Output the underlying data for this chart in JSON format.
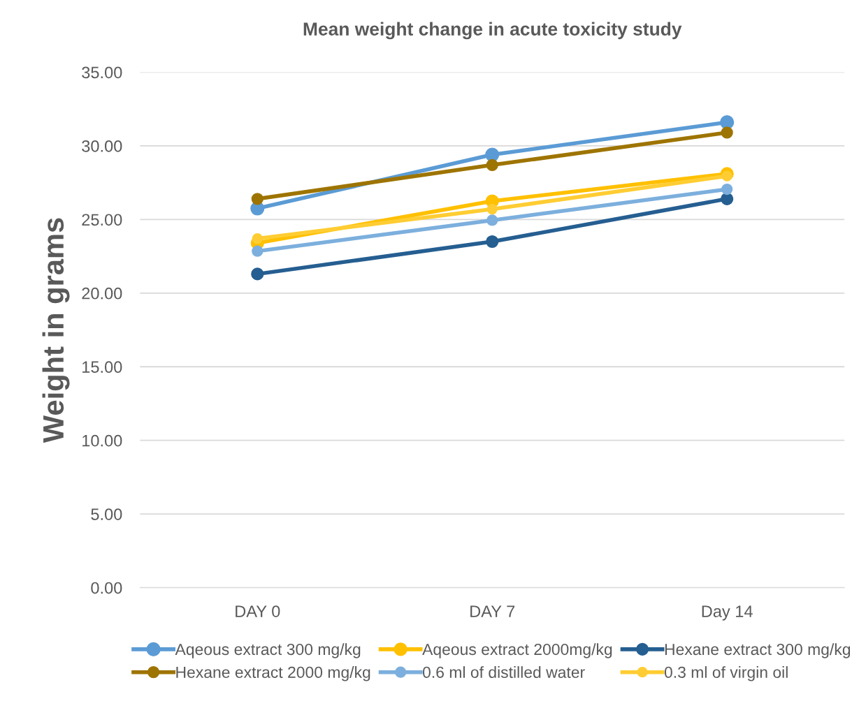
{
  "chart_data": {
    "type": "line",
    "title": "Mean weight change in acute toxicity study",
    "ylabel": "Weight in grams",
    "categories": [
      "DAY 0",
      "DAY 7",
      "Day 14"
    ],
    "series": [
      {
        "name": "Aqeous extract 300 mg/kg",
        "color": "#5b9bd5",
        "values": [
          25.75,
          29.4,
          31.6
        ]
      },
      {
        "name": "Aqeous extract 2000mg/kg",
        "color": "#ffc000",
        "values": [
          23.4,
          26.25,
          28.1
        ]
      },
      {
        "name": "Hexane extract 300 mg/kg",
        "color": "#255e91",
        "values": [
          21.3,
          23.5,
          26.4
        ]
      },
      {
        "name": "Hexane extract 2000 mg/kg",
        "color": "#9e7400",
        "values": [
          26.4,
          28.7,
          30.9
        ]
      },
      {
        "name": "0.6 ml of distilled water",
        "color": "#7cafdd",
        "values": [
          22.85,
          24.95,
          27.05
        ]
      },
      {
        "name": "0.3 ml of virgin oil",
        "color": "#ffcd33",
        "values": [
          23.7,
          25.7,
          27.95
        ]
      }
    ],
    "ylim": [
      0,
      35
    ],
    "yticks": [
      {
        "value": 0,
        "label": "0.00"
      },
      {
        "value": 5,
        "label": "5.00"
      },
      {
        "value": 10,
        "label": "10.00"
      },
      {
        "value": 15,
        "label": "15.00"
      },
      {
        "value": 20,
        "label": "20.00"
      },
      {
        "value": 25,
        "label": "25.00"
      },
      {
        "value": 30,
        "label": "30.00"
      },
      {
        "value": 35,
        "label": "35.00"
      }
    ],
    "grid": "y",
    "legend": "bottom",
    "marker": "circle",
    "line_style": "solid"
  }
}
